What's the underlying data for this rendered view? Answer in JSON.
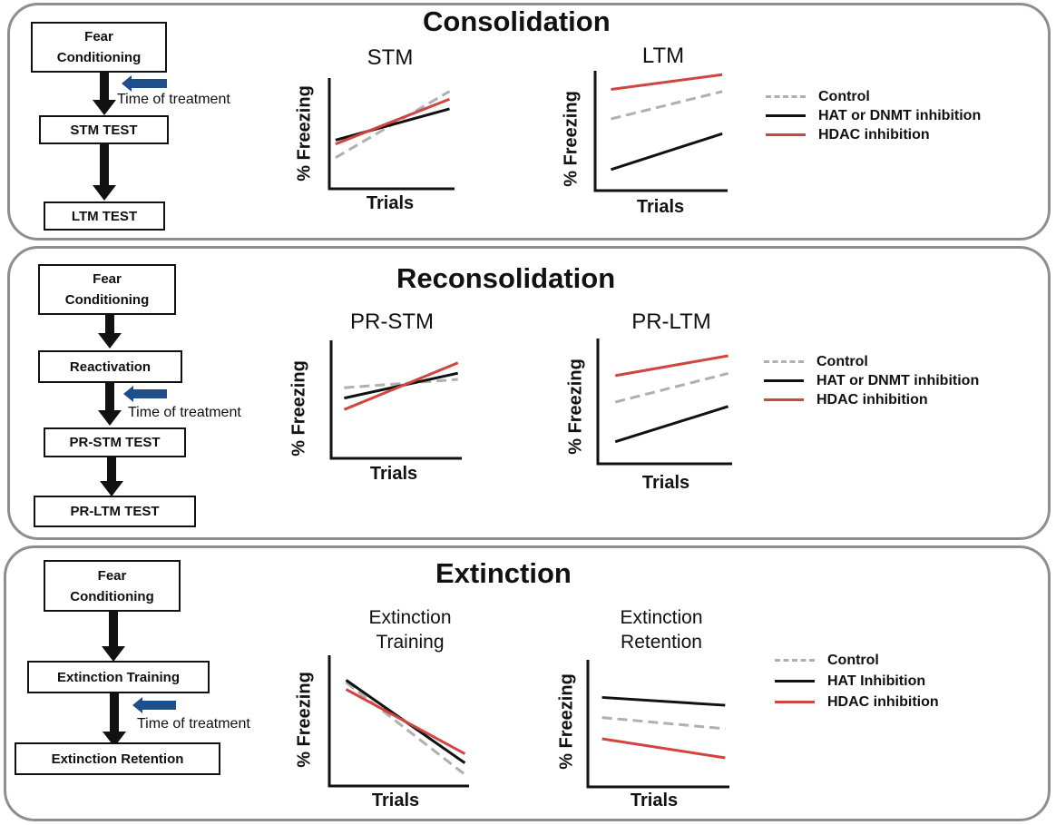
{
  "colors": {
    "control": "#b0b0b0",
    "inhibitor": "#111111",
    "hdac": "#d0453f",
    "treatment_arrow": "#1f4e8c",
    "panel_border": "#8e8e8e"
  },
  "treatment_label": "Time of treatment",
  "y_axis_label": "% Freezing",
  "x_axis_label": "Trials",
  "panels": [
    {
      "title": "Consolidation",
      "flow": [
        "Fear\nConditioning",
        "STM TEST",
        "LTM TEST"
      ],
      "legend": [
        "Control",
        "HAT or DNMT inhibition",
        "HDAC inhibition"
      ],
      "charts": [
        {
          "title": "STM",
          "series": [
            {
              "name": "Control",
              "style": "dashed",
              "y": [
                0.32,
                1.0
              ]
            },
            {
              "name": "HAT or DNMT inhibition",
              "style": "solid",
              "y": [
                0.5,
                0.82
              ]
            },
            {
              "name": "HDAC inhibition",
              "style": "solid",
              "y": [
                0.46,
                0.92
              ]
            }
          ]
        },
        {
          "title": "LTM",
          "series": [
            {
              "name": "Control",
              "style": "dashed",
              "y": [
                0.68,
                0.94
              ]
            },
            {
              "name": "HAT or DNMT inhibition",
              "style": "solid",
              "y": [
                0.2,
                0.54
              ]
            },
            {
              "name": "HDAC inhibition",
              "style": "solid",
              "y": [
                0.96,
                1.1
              ]
            }
          ]
        }
      ]
    },
    {
      "title": "Reconsolidation",
      "flow": [
        "Fear\nConditioning",
        "Reactivation",
        "PR-STM TEST",
        "PR-LTM TEST"
      ],
      "legend": [
        "Control",
        "HAT or DNMT inhibition",
        "HDAC inhibition"
      ],
      "charts": [
        {
          "title": "PR-STM",
          "series": [
            {
              "name": "Control",
              "style": "dashed",
              "y": [
                0.68,
                0.76
              ]
            },
            {
              "name": "HAT or DNMT inhibition",
              "style": "solid",
              "y": [
                0.58,
                0.82
              ]
            },
            {
              "name": "HDAC inhibition",
              "style": "solid",
              "y": [
                0.47,
                0.92
              ]
            }
          ]
        },
        {
          "title": "PR-LTM",
          "series": [
            {
              "name": "Control",
              "style": "dashed",
              "y": [
                0.56,
                0.82
              ]
            },
            {
              "name": "HAT or DNMT inhibition",
              "style": "solid",
              "y": [
                0.2,
                0.52
              ]
            },
            {
              "name": "HDAC inhibition",
              "style": "solid",
              "y": [
                0.8,
                0.98
              ]
            }
          ]
        }
      ]
    },
    {
      "title": "Extinction",
      "flow": [
        "Fear\nConditioning",
        "Extinction Training",
        "Extinction Retention"
      ],
      "legend": [
        "Control",
        "HAT Inhibition",
        "HDAC inhibition"
      ],
      "charts": [
        {
          "title": "Extinction\nTraining",
          "series": [
            {
              "name": "Control",
              "style": "dashed",
              "y": [
                0.9,
                0.1
              ]
            },
            {
              "name": "HAT Inhibition",
              "style": "solid",
              "y": [
                0.92,
                0.2
              ]
            },
            {
              "name": "HDAC inhibition",
              "style": "solid",
              "y": [
                0.84,
                0.28
              ]
            }
          ]
        },
        {
          "title": "Extinction\nRetention",
          "series": [
            {
              "name": "Control",
              "style": "dashed",
              "y": [
                0.62,
                0.52
              ]
            },
            {
              "name": "HAT Inhibition",
              "style": "solid",
              "y": [
                0.8,
                0.73
              ]
            },
            {
              "name": "HDAC inhibition",
              "style": "solid",
              "y": [
                0.43,
                0.26
              ]
            }
          ]
        }
      ]
    }
  ]
}
